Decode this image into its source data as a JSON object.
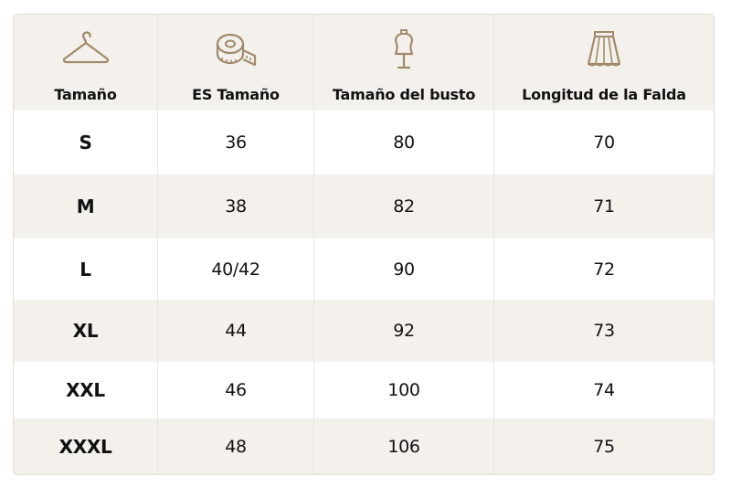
{
  "table": {
    "headers": [
      {
        "icon": "hanger-icon",
        "label": "Tamaño"
      },
      {
        "icon": "measuring-tape-icon",
        "label": "ES Tamaño"
      },
      {
        "icon": "mannequin-icon",
        "label": "Tamaño del busto"
      },
      {
        "icon": "skirt-icon",
        "label": "Longitud de la Falda"
      }
    ],
    "rows": [
      [
        "S",
        "36",
        "80",
        "70"
      ],
      [
        "M",
        "38",
        "82",
        "71"
      ],
      [
        "L",
        "40/42",
        "90",
        "72"
      ],
      [
        "XL",
        "44",
        "92",
        "73"
      ],
      [
        "XXL",
        "46",
        "100",
        "74"
      ],
      [
        "XXXL",
        "48",
        "106",
        "75"
      ]
    ],
    "colors": {
      "shaded_row": "#f4f0ec",
      "icon_stroke": "#a08a6a",
      "text": "#111111"
    }
  }
}
